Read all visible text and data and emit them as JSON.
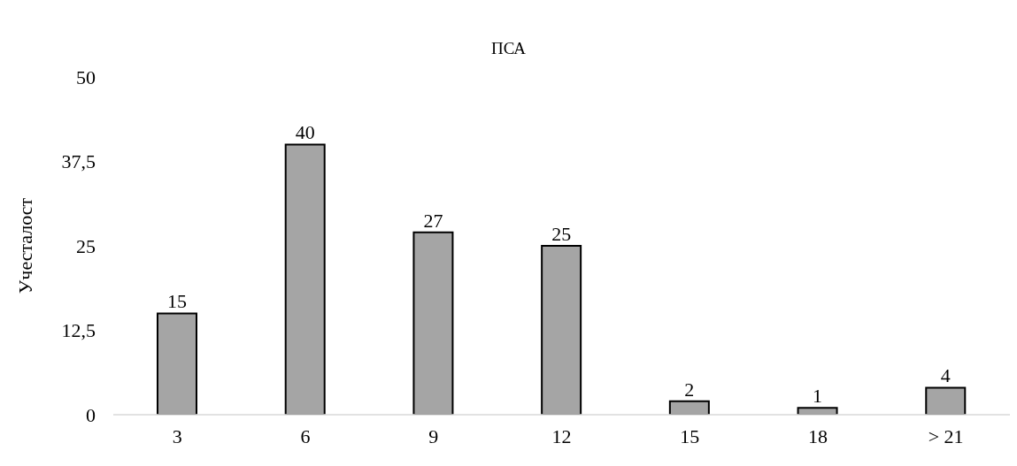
{
  "chart_data": {
    "type": "bar",
    "title": "ПСА",
    "ylabel": "Учесталост",
    "categories": [
      "3",
      "6",
      "9",
      "12",
      "15",
      "18",
      "> 21"
    ],
    "values": [
      15,
      40,
      27,
      25,
      2,
      1,
      4
    ],
    "color": "#a5a5a5",
    "ylim": [
      0,
      50
    ],
    "yticks": [
      0,
      {
        "value": 12.5,
        "label": "12,5"
      },
      25,
      {
        "value": 37.5,
        "label": "37,5"
      },
      50
    ],
    "data_labels": true
  }
}
